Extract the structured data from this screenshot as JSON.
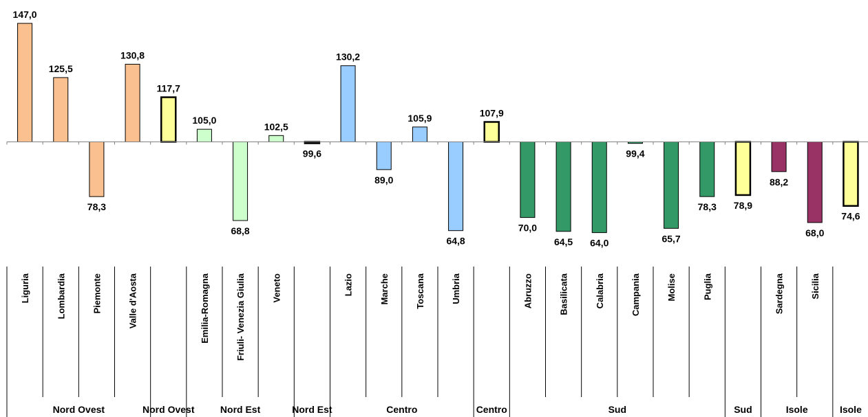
{
  "chart_data": {
    "type": "bar",
    "baseline": 100,
    "ylim": [
      60,
      150
    ],
    "value_labels": [
      "147,0",
      "125,5",
      "78,3",
      "130,8",
      "117,7",
      "105,0",
      "68,8",
      "102,5",
      "99,6",
      "130,2",
      "89,0",
      "105,9",
      "64,8",
      "107,9",
      "70,0",
      "64,5",
      "64,0",
      "99,4",
      "65,7",
      "78,3",
      "78,9",
      "88,2",
      "68,0",
      "74,6"
    ],
    "categories": [
      "Liguria",
      "Lombardia",
      "Piemonte",
      "Valle d'Aosta",
      "",
      "Emilia-Romagna",
      "Friuli- Venezia Giulia",
      "Veneto",
      "",
      "Lazio",
      "Marche",
      "Toscana",
      "Umbria",
      "",
      "Abruzzo",
      "Basilicata",
      "Calabria",
      "Campania",
      "Molise",
      "Puglia",
      "",
      "Sardegna",
      "Sicilia",
      ""
    ],
    "values": [
      147.0,
      125.5,
      78.3,
      130.8,
      117.7,
      105.0,
      68.8,
      102.5,
      99.6,
      130.2,
      89.0,
      105.9,
      64.8,
      107.9,
      70.0,
      64.5,
      64.0,
      99.4,
      65.7,
      78.3,
      78.9,
      88.2,
      68.0,
      74.6
    ],
    "is_total": [
      false,
      false,
      false,
      false,
      true,
      false,
      false,
      false,
      true,
      false,
      false,
      false,
      false,
      true,
      false,
      false,
      false,
      false,
      false,
      false,
      true,
      false,
      false,
      true
    ],
    "groups": [
      {
        "label": "Nord Ovest",
        "start": 0,
        "end": 3
      },
      {
        "label": "Nord Ovest",
        "start": 4,
        "end": 4
      },
      {
        "label": "Nord Est",
        "start": 5,
        "end": 7
      },
      {
        "label": "Nord Est",
        "start": 8,
        "end": 8
      },
      {
        "label": "Centro",
        "start": 9,
        "end": 12
      },
      {
        "label": "Centro",
        "start": 13,
        "end": 13
      },
      {
        "label": "Sud",
        "start": 14,
        "end": 19
      },
      {
        "label": "Sud",
        "start": 20,
        "end": 20
      },
      {
        "label": "Isole",
        "start": 21,
        "end": 22
      },
      {
        "label": "Isole",
        "start": 23,
        "end": 23
      }
    ],
    "colors": {
      "nord_ovest": "#FAC090",
      "nord_est": "#CCFFCC",
      "centro": "#99CCFF",
      "sud": "#339966",
      "isole": "#993366",
      "total": "#FFFF99",
      "axis": "#808080",
      "stroke": "#000000"
    },
    "bar_color_keys": [
      "nord_ovest",
      "nord_ovest",
      "nord_ovest",
      "nord_ovest",
      "total",
      "nord_est",
      "nord_est",
      "nord_est",
      "total",
      "centro",
      "centro",
      "centro",
      "centro",
      "total",
      "sud",
      "sud",
      "sud",
      "sud",
      "sud",
      "sud",
      "total",
      "isole",
      "isole",
      "total"
    ]
  }
}
